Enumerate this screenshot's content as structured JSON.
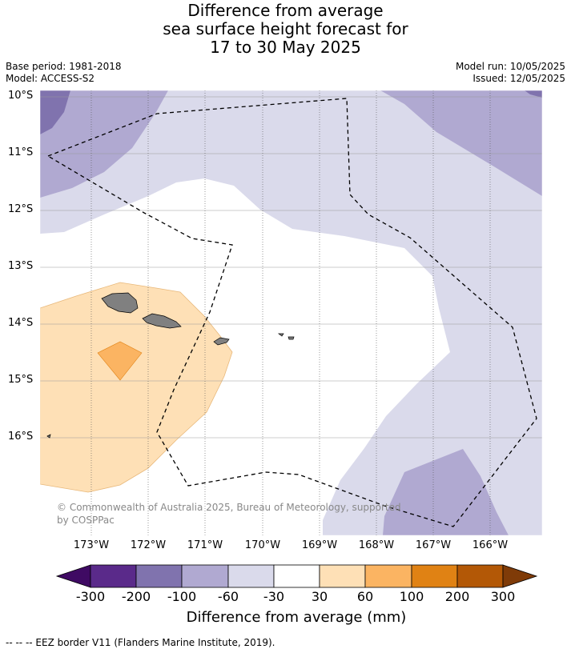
{
  "title": {
    "line1": "Difference from average",
    "line2": "sea surface height forecast for",
    "line3": "17 to 30 May 2025"
  },
  "meta": {
    "base_period": "Base period: 1981-2018",
    "model": "Model: ACCESS-S2",
    "model_run": "Model run: 10/05/2025",
    "issued": "Issued: 12/05/2025"
  },
  "map": {
    "lat_ticks": [
      "10°S",
      "11°S",
      "12°S",
      "13°S",
      "14°S",
      "15°S",
      "16°S"
    ],
    "lon_ticks": [
      "173°W",
      "172°W",
      "171°W",
      "170°W",
      "169°W",
      "168°W",
      "167°W",
      "166°W"
    ],
    "copyright": "© Commonwealth of Australia 2025, Bureau of Meteorology, supported by COSPPac"
  },
  "colorbar": {
    "labels": [
      "-300",
      "-200",
      "-100",
      "-60",
      "-30",
      "30",
      "60",
      "100",
      "200",
      "300"
    ],
    "colors": [
      "#3f0a63",
      "#5a2a8a",
      "#8073ae",
      "#b0a9d1",
      "#dadaeb",
      "#ffffff",
      "#fee0b6",
      "#fbb462",
      "#e08214",
      "#b35806",
      "#7f3b08"
    ],
    "title": "Difference from average (mm)"
  },
  "footer": {
    "legend": "--  --  -- EEZ border V11 (Flanders Marine Institute, 2019)."
  }
}
